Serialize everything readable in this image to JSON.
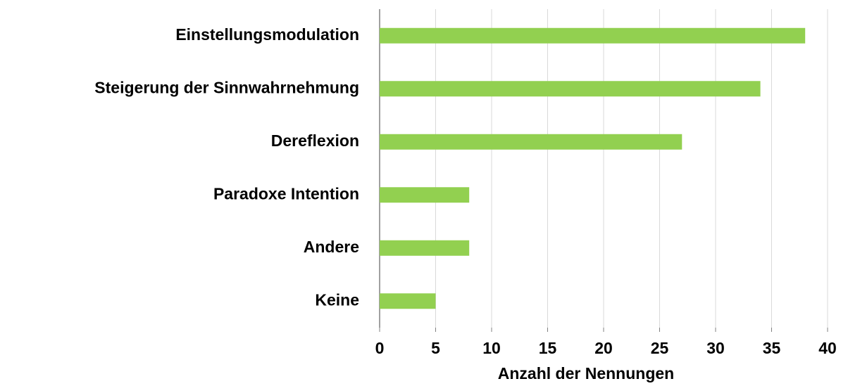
{
  "chart_data": {
    "type": "barh",
    "categories": [
      "Einstellungsmodulation",
      "Steigerung der Sinnwahrnehmung",
      "Dereflexion",
      "Paradoxe Intention",
      "Andere",
      "Keine"
    ],
    "values": [
      38,
      34,
      27,
      8,
      8,
      5
    ],
    "color": "#92d050",
    "xlabel": "Anzahl der Nennungen",
    "xlim": [
      0,
      40
    ],
    "xticks": [
      0,
      5,
      10,
      15,
      20,
      25,
      30,
      35,
      40
    ],
    "grid": true
  }
}
